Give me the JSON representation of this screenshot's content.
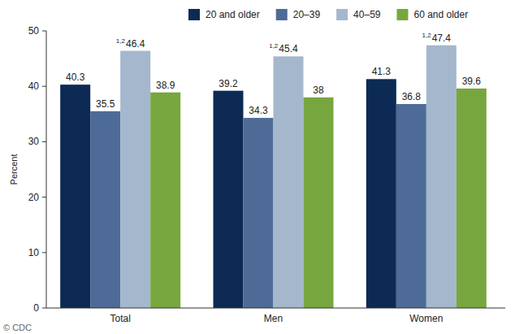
{
  "chart_data": {
    "type": "bar",
    "y_label": "Percent",
    "categories": [
      "Total",
      "Men",
      "Women"
    ],
    "series": [
      {
        "name": "20 and older",
        "color": "#0c2a54",
        "values": [
          40.3,
          39.2,
          41.3
        ]
      },
      {
        "name": "20–39",
        "color": "#4e6b97",
        "values": [
          35.5,
          34.3,
          36.8
        ]
      },
      {
        "name": "40–59",
        "color": "#a5b7cd",
        "values": [
          46.4,
          45.4,
          47.4
        ]
      },
      {
        "name": "60 and older",
        "color": "#78a63e",
        "values": [
          38.9,
          38.0,
          39.6
        ]
      }
    ],
    "annotations": [
      {
        "text": "1,2",
        "series": 2,
        "category": 0
      },
      {
        "text": "1,2",
        "series": 2,
        "category": 1
      },
      {
        "text": "1,2",
        "series": 2,
        "category": 2
      }
    ],
    "credit": "© CDC",
    "ylim": [
      0,
      50
    ],
    "yticks": [
      0,
      10,
      20,
      30,
      40,
      50
    ],
    "grid": false,
    "legend": "top",
    "data_labels": true
  }
}
